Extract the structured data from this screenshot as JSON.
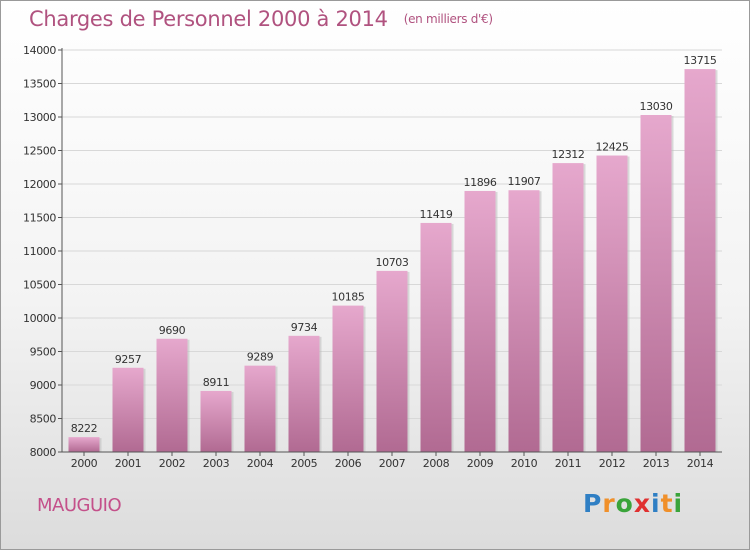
{
  "title": "Charges de Personnel 2000 à 2014",
  "subtitle": "(en milliers d'€)",
  "commune": "MAUGUIO",
  "logo": {
    "letters": [
      "P",
      "r",
      "o",
      "x",
      "i",
      "t",
      "i"
    ],
    "colors": [
      "#2f7fc4",
      "#f0902a",
      "#3aa43a",
      "#e03030",
      "#2f7fc4",
      "#f0902a",
      "#3aa43a"
    ]
  },
  "colors": {
    "accent": "#b0527f",
    "bar_top": "#e6a8cd",
    "bar_bottom": "#b16a92"
  },
  "chart_data": {
    "type": "bar",
    "categories": [
      "2000",
      "2001",
      "2002",
      "2003",
      "2004",
      "2005",
      "2006",
      "2007",
      "2008",
      "2009",
      "2010",
      "2011",
      "2012",
      "2013",
      "2014"
    ],
    "values": [
      8222,
      9257,
      9690,
      8911,
      9289,
      9734,
      10185,
      10703,
      11419,
      11896,
      11907,
      12312,
      12425,
      13030,
      13715
    ],
    "ylim": [
      8000,
      14000
    ],
    "yticks": [
      8000,
      8500,
      9000,
      9500,
      10000,
      10500,
      11000,
      11500,
      12000,
      12500,
      13000,
      13500,
      14000
    ],
    "grid": true
  }
}
